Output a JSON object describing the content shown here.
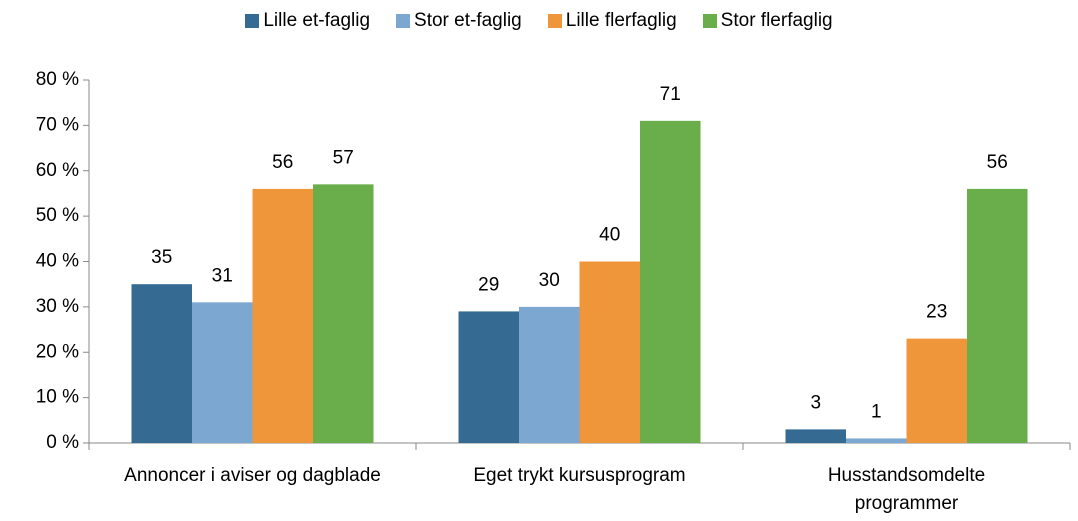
{
  "chart_data": {
    "type": "bar",
    "categories": [
      "Annoncer i aviser og dagblade",
      "Eget trykt kursusprogram",
      "Husstandsomdelte programmer"
    ],
    "series": [
      {
        "name": "Lille et-faglig",
        "color": "#356a93",
        "values": [
          35,
          29,
          3
        ]
      },
      {
        "name": "Stor et-faglig",
        "color": "#7ba7d0",
        "values": [
          31,
          30,
          1
        ]
      },
      {
        "name": "Lille flerfaglig",
        "color": "#f0963a",
        "values": [
          56,
          40,
          23
        ]
      },
      {
        "name": "Stor flerfaglig",
        "color": "#6aad4b",
        "values": [
          57,
          71,
          56
        ]
      }
    ],
    "ylim": [
      0,
      80
    ],
    "yticks": [
      {
        "value": 0,
        "label": "0 %"
      },
      {
        "value": 10,
        "label": "10 %"
      },
      {
        "value": 20,
        "label": "20 %"
      },
      {
        "value": 30,
        "label": "30 %"
      },
      {
        "value": 40,
        "label": "40 %"
      },
      {
        "value": 50,
        "label": "50 %"
      },
      {
        "value": 60,
        "label": "60 %"
      },
      {
        "value": 70,
        "label": "70 %"
      },
      {
        "value": 80,
        "label": "80 %"
      }
    ],
    "legend": "top"
  }
}
